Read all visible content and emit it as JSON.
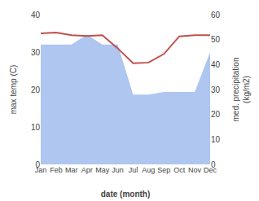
{
  "chart_data": {
    "type": "line",
    "xlabel": "date (month)",
    "ylabel": "max temp (C)",
    "y2label": "med. precipitation\n(kg/m2)",
    "categories": [
      "Jan",
      "Feb",
      "Mar",
      "Apr",
      "May",
      "Jun",
      "Jul",
      "Aug",
      "Sep",
      "Oct",
      "Nov",
      "Dec"
    ],
    "series": [
      {
        "type": "area",
        "axis": "y2",
        "color": "#aec6f0",
        "values": [
          48,
          48,
          48,
          52,
          48,
          48,
          28,
          28,
          29,
          29,
          29,
          45
        ]
      },
      {
        "type": "line",
        "color": "#c0504d",
        "values": [
          35.0,
          35.2,
          34.5,
          34.3,
          34.5,
          31.0,
          27.0,
          27.2,
          29.5,
          34.2,
          34.5,
          34.5
        ]
      }
    ],
    "ylim": [
      0,
      40
    ],
    "yticks": [
      0,
      10,
      20,
      30,
      40
    ],
    "y2lim": [
      0,
      60
    ],
    "y2ticks": [
      0,
      10,
      20,
      30,
      40,
      50,
      60
    ],
    "grid": false
  }
}
